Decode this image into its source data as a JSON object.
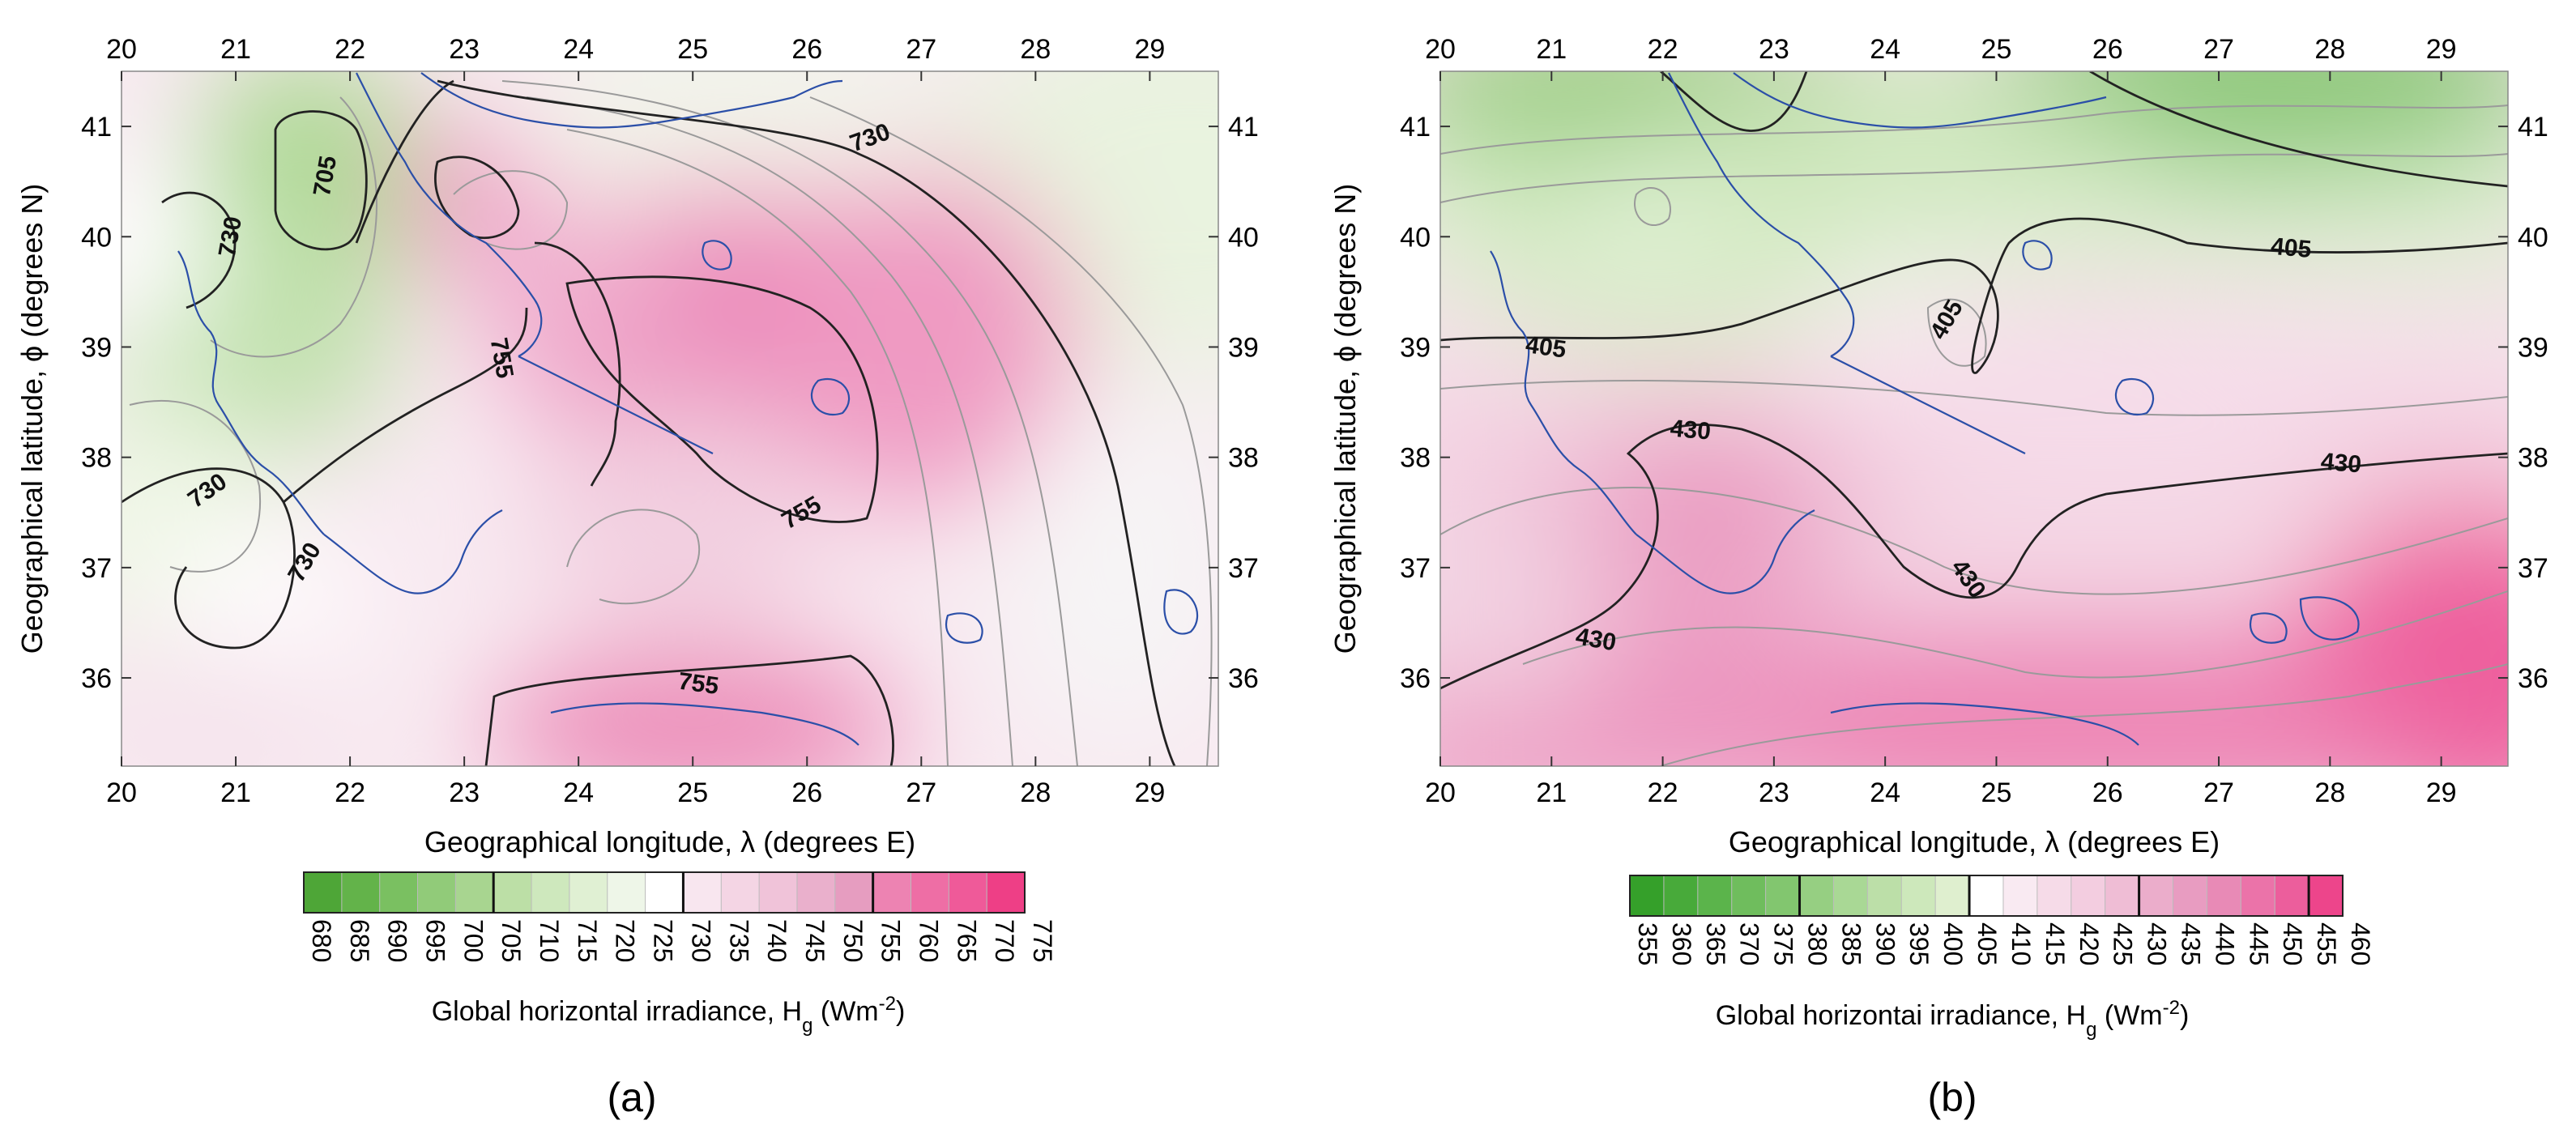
{
  "figure": {
    "panels": [
      {
        "id": "a",
        "caption_label": "(a)",
        "xlabel": "Geographical longitude, λ (degrees E)",
        "ylabel": "Geographical latitude, ϕ (degrees N)",
        "x_ticks": [
          20,
          21,
          22,
          23,
          24,
          25,
          26,
          27,
          28,
          29
        ],
        "y_ticks": [
          36,
          37,
          38,
          39,
          40,
          41
        ],
        "xlim": [
          20,
          29.6
        ],
        "ylim": [
          35.2,
          41.5
        ],
        "colorbar": {
          "title": "Global horizontal irradiance, H",
          "title_sub": "g",
          "title_unit": " (Wm",
          "title_sup": "-2",
          "title_end": ")",
          "ticks": [
            680,
            685,
            690,
            695,
            700,
            705,
            710,
            715,
            720,
            725,
            730,
            735,
            740,
            745,
            750,
            755,
            760,
            765,
            770,
            775
          ],
          "colors": [
            "#4ea637",
            "#63b34a",
            "#7ac061",
            "#91cb79",
            "#a8d590",
            "#bcdfa6",
            "#cee8bd",
            "#e0f0d3",
            "#eef6e8",
            "#ffffff",
            "#f8e6ef",
            "#f4d5e4",
            "#f0c3d9",
            "#eab0cc",
            "#e69dc0",
            "#ed83b2",
            "#ee6ea5",
            "#ef5a99",
            "#ee3f86"
          ],
          "bold_values": [
            705,
            730,
            755
          ]
        },
        "contour_labels": [
          {
            "text": "705",
            "lon": 21.78,
            "lat": 40.55,
            "rot": 80
          },
          {
            "text": "730",
            "lon": 20.95,
            "lat": 40.0,
            "rot": 80
          },
          {
            "text": "730",
            "lon": 26.55,
            "lat": 40.9,
            "rot": 20
          },
          {
            "text": "755",
            "lon": 23.33,
            "lat": 38.9,
            "rot": -80
          },
          {
            "text": "730",
            "lon": 20.75,
            "lat": 37.7,
            "rot": 35
          },
          {
            "text": "730",
            "lon": 21.6,
            "lat": 37.05,
            "rot": 60
          },
          {
            "text": "755",
            "lon": 25.95,
            "lat": 37.5,
            "rot": 30
          },
          {
            "text": "755",
            "lon": 25.05,
            "lat": 35.95,
            "rot": -8
          }
        ]
      },
      {
        "id": "b",
        "caption_label": "(b)",
        "xlabel": "Geographical longitude, λ (degrees E)",
        "ylabel": "Geographical latitude, ϕ (degrees N)",
        "x_ticks": [
          20,
          21,
          22,
          23,
          24,
          25,
          26,
          27,
          28,
          29
        ],
        "y_ticks": [
          36,
          37,
          38,
          39,
          40,
          41
        ],
        "xlim": [
          20,
          29.6
        ],
        "ylim": [
          35.2,
          41.5
        ],
        "colorbar": {
          "title": "Global horizontai irradiance, H",
          "title_sub": "g",
          "title_unit": " (Wm",
          "title_sup": "-2",
          "title_end": ")",
          "ticks": [
            355,
            360,
            365,
            370,
            375,
            380,
            385,
            390,
            395,
            400,
            405,
            410,
            415,
            420,
            425,
            430,
            435,
            440,
            445,
            450,
            455,
            460
          ],
          "colors": [
            "#35a02a",
            "#48aa3a",
            "#5bb44b",
            "#6fbd5d",
            "#82c66f",
            "#96cf82",
            "#a9d895",
            "#bcdfa8",
            "#cde8bb",
            "#dfefcf",
            "#ffffff",
            "#f9eaf2",
            "#f6dbe8",
            "#f3cde0",
            "#efbdd5",
            "#ebadcb",
            "#e89cc1",
            "#e88ab6",
            "#eb73a9",
            "#ec5e9c",
            "#ed458b"
          ],
          "bold_values": [
            380,
            405,
            430,
            455
          ]
        },
        "contour_labels": [
          {
            "text": "405",
            "lon": 27.65,
            "lat": 39.9,
            "rot": -5
          },
          {
            "text": "405",
            "lon": 24.55,
            "lat": 39.25,
            "rot": 60
          },
          {
            "text": "405",
            "lon": 20.95,
            "lat": 39.0,
            "rot": -8
          },
          {
            "text": "430",
            "lon": 22.25,
            "lat": 38.25,
            "rot": -5
          },
          {
            "text": "430",
            "lon": 28.1,
            "lat": 37.95,
            "rot": -5
          },
          {
            "text": "430",
            "lon": 24.75,
            "lat": 36.9,
            "rot": -55
          },
          {
            "text": "430",
            "lon": 21.4,
            "lat": 36.35,
            "rot": -10
          }
        ]
      }
    ]
  }
}
